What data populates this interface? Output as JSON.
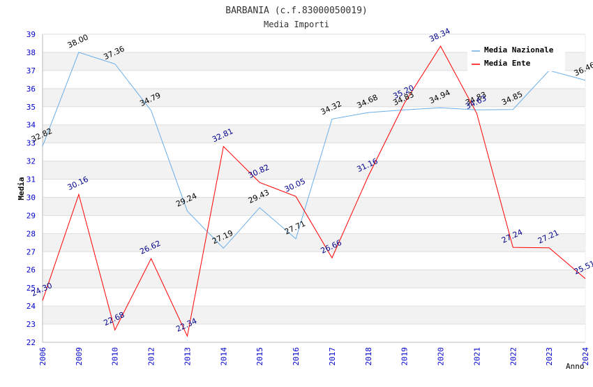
{
  "chart_data": {
    "type": "line",
    "title": "BARBANIA (c.f.83000050019)",
    "subtitle": "Media Importi",
    "xlabel": "Anno",
    "ylabel": "Media",
    "ylim": [
      22,
      39
    ],
    "y_ticks": [
      22,
      23,
      24,
      25,
      26,
      27,
      28,
      29,
      30,
      31,
      32,
      33,
      34,
      35,
      36,
      37,
      38,
      39
    ],
    "categories": [
      "2006",
      "2009",
      "2010",
      "2012",
      "2013",
      "2014",
      "2015",
      "2016",
      "2017",
      "2018",
      "2019",
      "2020",
      "2021",
      "2022",
      "2023",
      "2024"
    ],
    "grid": true,
    "legend_position": "top-right",
    "series": [
      {
        "name": "Media Nazionale",
        "color": "#6aaee8",
        "label_color": "#000000",
        "values": [
          32.82,
          38.0,
          37.36,
          34.79,
          29.24,
          27.19,
          29.43,
          27.71,
          34.32,
          34.68,
          34.83,
          34.94,
          34.83,
          34.85,
          37.0,
          36.46
        ],
        "labels": [
          "32.82",
          "38.00",
          "37.36",
          "34.79",
          "29.24",
          "27.19",
          "29.43",
          "27.71",
          "34.32",
          "34.68",
          "34.83",
          "34.94",
          "34.83",
          "34.85",
          "",
          "36.46"
        ]
      },
      {
        "name": "Media Ente",
        "color": "#ff0000",
        "label_color": "#00008b",
        "values": [
          24.3,
          30.16,
          22.68,
          26.62,
          22.34,
          32.81,
          30.82,
          30.05,
          26.66,
          31.16,
          35.2,
          38.34,
          34.63,
          27.24,
          27.21,
          25.51
        ],
        "labels": [
          "24.30",
          "30.16",
          "22.68",
          "26.62",
          "22.34",
          "32.81",
          "30.82",
          "30.05",
          "26.66",
          "31.16",
          "35.20",
          "38.34",
          "34.63",
          "27.24",
          "27.21",
          "25.51"
        ]
      }
    ]
  },
  "colors": {
    "band": "#f2f2f2",
    "grid": "#dddddd",
    "axis_tick_text": "#0000cc",
    "title_text": "#333333",
    "legend_text": "#000000"
  }
}
